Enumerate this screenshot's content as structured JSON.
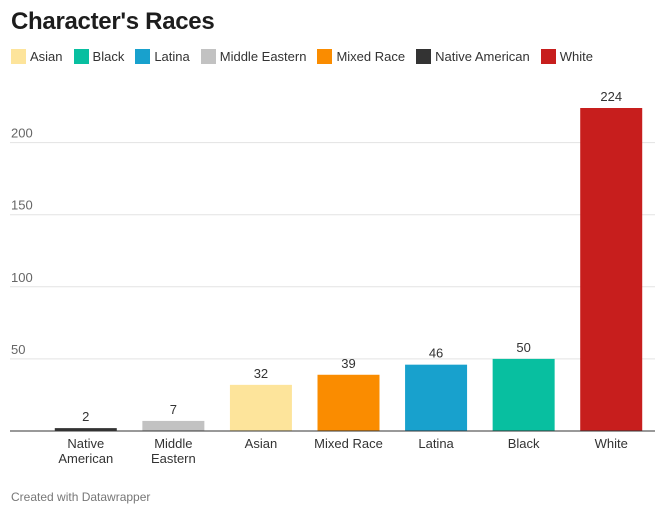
{
  "title": "Character's Races",
  "footer": "Created with Datawrapper",
  "legend": [
    {
      "label": "Asian",
      "color": "#fde49b"
    },
    {
      "label": "Black",
      "color": "#08bfa0"
    },
    {
      "label": "Latina",
      "color": "#18a1cd"
    },
    {
      "label": "Middle Eastern",
      "color": "#c2c2c2"
    },
    {
      "label": "Mixed Race",
      "color": "#fa8c00"
    },
    {
      "label": "Native American",
      "color": "#333333"
    },
    {
      "label": "White",
      "color": "#c71e1d"
    }
  ],
  "chart_data": {
    "type": "bar",
    "title": "Character's Races",
    "categories": [
      [
        "Native",
        "American"
      ],
      [
        "Middle",
        "Eastern"
      ],
      [
        "Asian"
      ],
      [
        "Mixed Race"
      ],
      [
        "Latina"
      ],
      [
        "Black"
      ],
      [
        "White"
      ]
    ],
    "values": [
      2,
      7,
      32,
      39,
      46,
      50,
      224
    ],
    "colors": [
      "#333333",
      "#c2c2c2",
      "#fde49b",
      "#fa8c00",
      "#18a1cd",
      "#08bfa0",
      "#c71e1d"
    ],
    "yticks": [
      50,
      100,
      150,
      200
    ],
    "ylim": [
      0,
      224
    ],
    "grid": true,
    "legend_position": "top-left",
    "xlabel": "",
    "ylabel": ""
  }
}
